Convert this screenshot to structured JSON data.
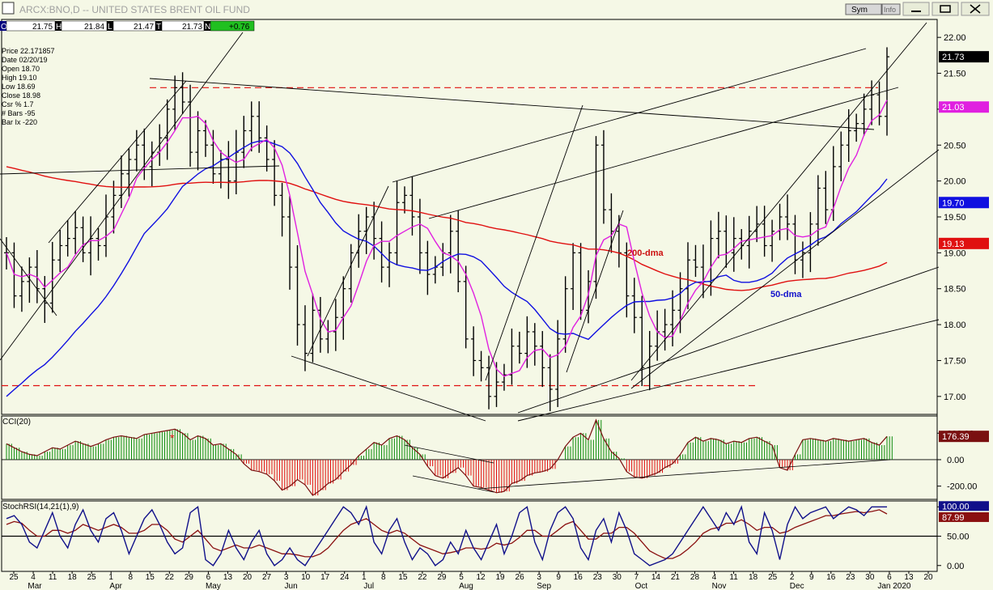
{
  "window": {
    "title": "ARCX:BNO,D -- UNITED STATES BRENT OIL FUND",
    "sym_button": "Sym",
    "info_button": "Info"
  },
  "quote": {
    "o_label": "O",
    "o": "21.75",
    "h_label": "H",
    "h": "21.84",
    "l_label": "L",
    "l": "21.47",
    "t_label": "T",
    "t": "21.73",
    "n_label": "N",
    "n": "+0.76"
  },
  "cursor": {
    "price": "Price  22.171857",
    "date": "Date   02/20/19",
    "open": "Open  18.70",
    "high": "High   19.10",
    "low": "Low    18.69",
    "close": "Close  18.98",
    "csr": "Csr %  1.7",
    "bars": "# Bars -95",
    "barix": "Bar Ix  -220"
  },
  "colors": {
    "background": "#f5f8e6",
    "price_bars": "#000000",
    "ma_fast": "#e020e0",
    "ma_50": "#1010e0",
    "ma_200": "#e01010",
    "cci_up": "#0a8a0a",
    "cci_down": "#e01010",
    "stoch_fast": "#10108a",
    "stoch_slow": "#8a1010"
  },
  "chart_data": {
    "type": "bar",
    "ylim": [
      16.75,
      22.25
    ],
    "y_ticks": [
      "22.00",
      "21.50",
      "21.00",
      "20.50",
      "20.00",
      "19.50",
      "19.00",
      "18.50",
      "18.00",
      "17.50",
      "17.00"
    ],
    "date_ticks": [
      "25",
      "4",
      "11",
      "18",
      "25",
      "1",
      "8",
      "15",
      "22",
      "29",
      "6",
      "13",
      "20",
      "27",
      "3",
      "10",
      "17",
      "24",
      "1",
      "8",
      "15",
      "22",
      "29",
      "5",
      "12",
      "19",
      "26",
      "3",
      "9",
      "16",
      "23",
      "30",
      "7",
      "14",
      "21",
      "28",
      "4",
      "11",
      "18",
      "25",
      "2",
      "9",
      "16",
      "23",
      "30",
      "6",
      "13",
      "20"
    ],
    "month_labels": [
      "Mar",
      "Apr",
      "May",
      "Jun",
      "Jul",
      "Aug",
      "Sep",
      "Oct",
      "Nov",
      "Dec",
      "Jan 2020"
    ],
    "right_labels": [
      {
        "value": 21.73,
        "text": "21.73",
        "color": "#000000"
      },
      {
        "value": 21.03,
        "text": "21.03",
        "color": "#e020e0"
      },
      {
        "value": 19.7,
        "text": "19.70",
        "color": "#1010e0"
      },
      {
        "value": 19.13,
        "text": "19.13",
        "color": "#e01010"
      }
    ],
    "annotations": [
      {
        "text": "200-dma",
        "color": "#cc1010"
      },
      {
        "text": "50-dma",
        "color": "#1010cc"
      }
    ],
    "horizontal_levels": [
      21.3,
      17.15
    ],
    "closes": [
      19.0,
      18.4,
      18.6,
      18.8,
      18.5,
      18.3,
      18.9,
      19.1,
      19.2,
      19.35,
      19.0,
      19.2,
      19.1,
      19.5,
      19.8,
      20.1,
      20.3,
      20.5,
      20.2,
      20.4,
      20.6,
      21.0,
      21.3,
      21.1,
      20.4,
      20.7,
      20.5,
      20.1,
      20.3,
      20.0,
      20.4,
      20.7,
      20.9,
      20.6,
      20.3,
      19.8,
      19.5,
      18.8,
      18.0,
      17.6,
      18.2,
      17.8,
      17.9,
      18.1,
      18.5,
      19.0,
      19.3,
      19.5,
      19.2,
      18.8,
      19.0,
      19.7,
      19.8,
      19.5,
      19.0,
      18.7,
      18.8,
      19.0,
      19.3,
      18.6,
      17.8,
      17.5,
      17.4,
      17.0,
      17.2,
      17.3,
      17.7,
      17.6,
      17.9,
      17.7,
      17.4,
      17.1,
      17.8,
      18.5,
      19.0,
      18.2,
      18.6,
      20.5,
      19.6,
      19.3,
      19.0,
      18.4,
      18.1,
      17.4,
      17.7,
      17.9,
      18.0,
      18.2,
      18.5,
      18.9,
      18.8,
      18.6,
      19.2,
      19.3,
      19.0,
      19.2,
      19.1,
      19.3,
      19.4,
      19.1,
      19.3,
      19.5,
      19.4,
      18.9,
      19.0,
      19.4,
      19.9,
      19.6,
      20.2,
      20.5,
      20.7,
      20.8,
      21.0,
      21.2,
      20.9,
      21.73
    ],
    "cci": {
      "label": "CCI(20)",
      "ticks": [
        "200.00",
        "0.00",
        "-200.00"
      ],
      "current": "176.39",
      "ylim": [
        -300,
        330
      ],
      "values": [
        120,
        90,
        60,
        40,
        30,
        60,
        90,
        80,
        110,
        140,
        120,
        100,
        120,
        150,
        170,
        180,
        170,
        160,
        190,
        200,
        210,
        220,
        230,
        200,
        150,
        180,
        160,
        110,
        120,
        80,
        40,
        -30,
        -80,
        -90,
        -110,
        -160,
        -230,
        -200,
        -150,
        -190,
        -270,
        -230,
        -180,
        -150,
        -90,
        -40,
        30,
        80,
        130,
        110,
        160,
        180,
        150,
        90,
        40,
        -50,
        -120,
        -140,
        -100,
        -60,
        -120,
        -200,
        -210,
        -230,
        -250,
        -240,
        -180,
        -160,
        -120,
        -100,
        -90,
        -70,
        0,
        100,
        170,
        200,
        150,
        300,
        160,
        60,
        10,
        -90,
        -130,
        -140,
        -120,
        -100,
        -60,
        -30,
        40,
        130,
        170,
        140,
        160,
        150,
        120,
        140,
        130,
        160,
        170,
        140,
        110,
        -60,
        -80,
        40,
        150,
        160,
        150,
        140,
        160,
        150,
        140,
        150,
        160,
        130,
        110,
        176
      ],
      "label_star": "*"
    },
    "stoch": {
      "label": "StochRSI(14,21(1),9)",
      "ticks": [
        "100.00",
        "50.00",
        "0.00"
      ],
      "current_fast": "100.00",
      "current_slow": "87.99",
      "ylim": [
        -10,
        110
      ],
      "fast": [
        80,
        85,
        70,
        40,
        30,
        60,
        90,
        50,
        30,
        70,
        95,
        60,
        40,
        80,
        90,
        60,
        20,
        50,
        80,
        95,
        70,
        40,
        20,
        30,
        90,
        100,
        10,
        0,
        20,
        60,
        30,
        10,
        40,
        60,
        20,
        0,
        10,
        30,
        10,
        0,
        20,
        40,
        60,
        80,
        100,
        90,
        70,
        100,
        40,
        20,
        60,
        80,
        40,
        10,
        30,
        20,
        0,
        10,
        40,
        20,
        60,
        30,
        10,
        40,
        70,
        20,
        50,
        90,
        100,
        40,
        10,
        60,
        90,
        100,
        80,
        30,
        10,
        60,
        80,
        40,
        90,
        60,
        20,
        10,
        0,
        5,
        10,
        20,
        40,
        60,
        80,
        100,
        80,
        60,
        90,
        70,
        100,
        40,
        20,
        90,
        60,
        10,
        70,
        100,
        80,
        90,
        95,
        100,
        80,
        90,
        100,
        95,
        85,
        100,
        100,
        100
      ],
      "slow": [
        70,
        75,
        72,
        60,
        50,
        50,
        60,
        60,
        55,
        60,
        70,
        65,
        60,
        65,
        70,
        65,
        55,
        55,
        60,
        70,
        70,
        60,
        45,
        40,
        50,
        60,
        45,
        30,
        25,
        30,
        35,
        30,
        30,
        35,
        30,
        25,
        20,
        20,
        18,
        15,
        15,
        20,
        30,
        45,
        60,
        70,
        75,
        80,
        70,
        60,
        55,
        60,
        55,
        45,
        35,
        30,
        25,
        20,
        22,
        25,
        30,
        30,
        28,
        30,
        38,
        35,
        38,
        48,
        60,
        60,
        50,
        50,
        60,
        70,
        75,
        60,
        45,
        45,
        55,
        55,
        65,
        65,
        55,
        40,
        25,
        18,
        12,
        12,
        18,
        28,
        40,
        55,
        62,
        65,
        72,
        72,
        78,
        70,
        60,
        65,
        65,
        55,
        58,
        65,
        70,
        75,
        80,
        85,
        85,
        88,
        90,
        92,
        90,
        92,
        95,
        88
      ]
    }
  }
}
